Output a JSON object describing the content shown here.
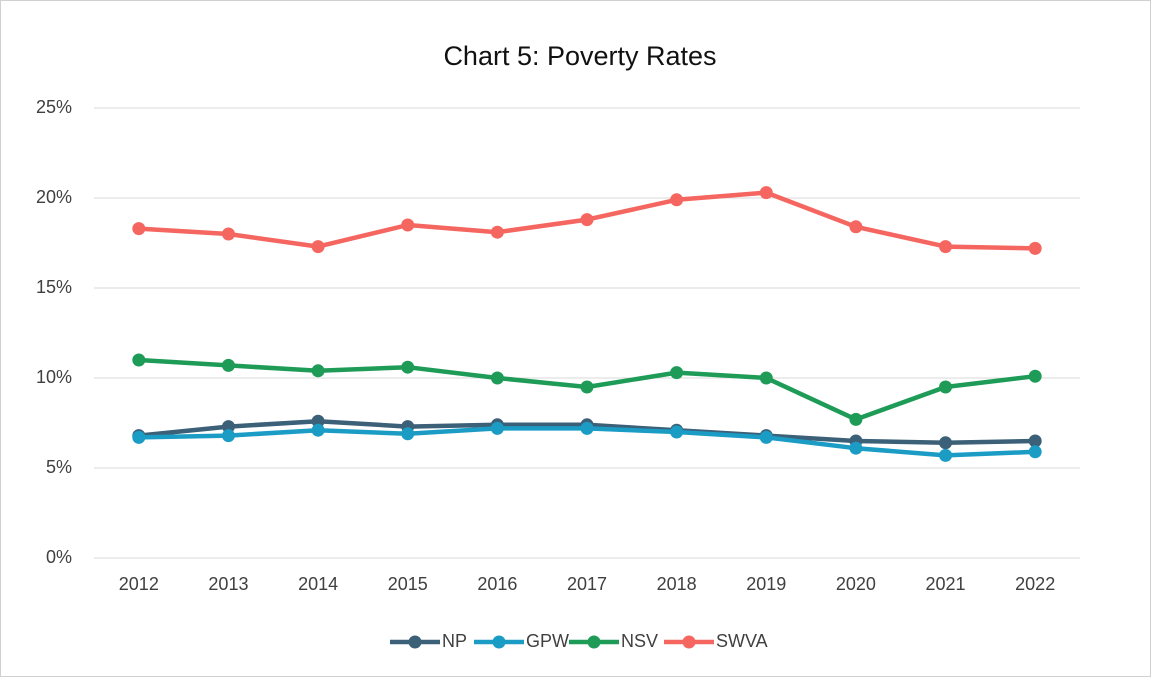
{
  "chart_data": {
    "type": "line",
    "title": "Chart 5:  Poverty Rates",
    "categories": [
      "2012",
      "2013",
      "2014",
      "2015",
      "2016",
      "2017",
      "2018",
      "2019",
      "2020",
      "2021",
      "2022"
    ],
    "series": [
      {
        "name": "NP",
        "color": "#3b6078",
        "values": [
          6.8,
          7.3,
          7.6,
          7.3,
          7.4,
          7.4,
          7.1,
          6.8,
          6.5,
          6.4,
          6.5
        ]
      },
      {
        "name": "GPW",
        "color": "#1b9cc5",
        "values": [
          6.7,
          6.8,
          7.1,
          6.9,
          7.2,
          7.2,
          7.0,
          6.7,
          6.1,
          5.7,
          5.9
        ]
      },
      {
        "name": "NSV",
        "color": "#1f9b58",
        "values": [
          11.0,
          10.7,
          10.4,
          10.6,
          10.0,
          9.5,
          10.3,
          10.0,
          7.7,
          9.5,
          10.1
        ]
      },
      {
        "name": "SWVA",
        "color": "#f4665f",
        "values": [
          18.3,
          18.0,
          17.3,
          18.5,
          18.1,
          18.8,
          19.9,
          20.3,
          18.4,
          17.3,
          17.2
        ]
      }
    ],
    "ylim": [
      0,
      25
    ],
    "yticks": [
      {
        "value": 0,
        "label": "0%"
      },
      {
        "value": 5,
        "label": "5%"
      },
      {
        "value": 10,
        "label": "10%"
      },
      {
        "value": 15,
        "label": "15%"
      },
      {
        "value": 20,
        "label": "20%"
      },
      {
        "value": 25,
        "label": "25%"
      }
    ],
    "grid": true,
    "legend": "bottom"
  }
}
